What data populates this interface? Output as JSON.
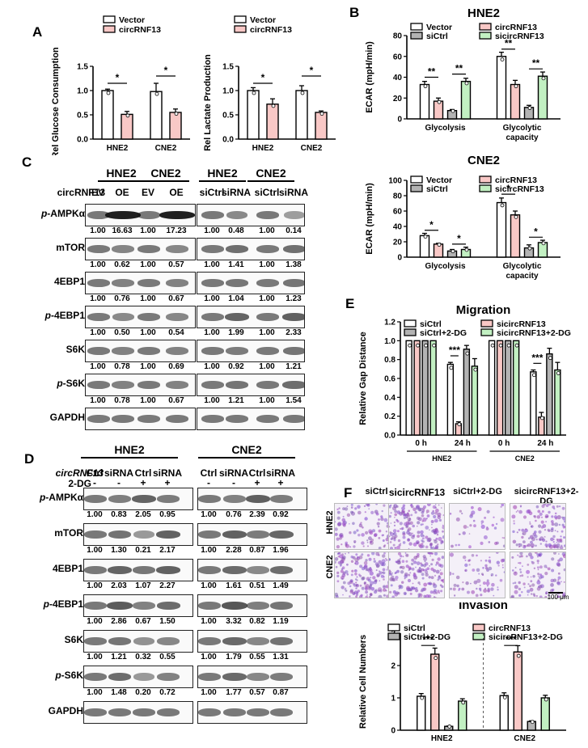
{
  "panels": {
    "A": "A",
    "B": "B",
    "C": "C",
    "D": "D",
    "E": "E",
    "F": "F"
  },
  "colors": {
    "ctrl": "#ffffff",
    "pink": "#f9c8c6",
    "gray": "#b3b3b3",
    "green": "#c2f0c2"
  },
  "chart_data": [
    {
      "id": "A1",
      "type": "bar",
      "ylabel": "Rel Glucose Consumption",
      "categories": [
        "HNE2",
        "CNE2"
      ],
      "ylim": [
        0,
        1.5
      ],
      "yticks": [
        "0.0",
        "0.5",
        "1.0",
        "1.5"
      ],
      "series": [
        {
          "name": "Vector",
          "values": [
            1.0,
            0.98
          ],
          "err": [
            0.03,
            0.17
          ]
        },
        {
          "name": "circRNF13",
          "values": [
            0.51,
            0.55
          ],
          "err": [
            0.06,
            0.07
          ]
        }
      ],
      "sig": [
        "*",
        "*"
      ]
    },
    {
      "id": "A2",
      "type": "bar",
      "ylabel": "Rel Lactate Production",
      "categories": [
        "HNE2",
        "CNE2"
      ],
      "ylim": [
        0,
        1.5
      ],
      "yticks": [
        "0.0",
        "0.5",
        "1.0",
        "1.5"
      ],
      "series": [
        {
          "name": "Vector",
          "values": [
            1.0,
            1.0
          ],
          "err": [
            0.06,
            0.1
          ]
        },
        {
          "name": "circRNF13",
          "values": [
            0.72,
            0.55
          ],
          "err": [
            0.11,
            0.03
          ]
        }
      ],
      "sig": [
        "*",
        "*"
      ]
    },
    {
      "id": "B1",
      "type": "bar",
      "title": "HNE2",
      "ylabel": "ECAR (mpH/min)",
      "categories": [
        "Glycolysis",
        "Glycolytic capacity"
      ],
      "ylim": [
        0,
        80
      ],
      "yticks": [
        "0",
        "20",
        "40",
        "60",
        "80"
      ],
      "series": [
        {
          "name": "Vector",
          "values": [
            33,
            60
          ],
          "err": [
            3,
            4
          ]
        },
        {
          "name": "circRNF13",
          "values": [
            17,
            33
          ],
          "err": [
            3,
            4
          ]
        },
        {
          "name": "siCtrl",
          "values": [
            8,
            11
          ],
          "err": [
            1,
            2
          ]
        },
        {
          "name": "sicircRNF13",
          "values": [
            36,
            41
          ],
          "err": [
            3,
            4
          ]
        }
      ],
      "sig": [
        "**",
        "**",
        "**",
        "**"
      ]
    },
    {
      "id": "B2",
      "type": "bar",
      "title": "CNE2",
      "ylabel": "ECAR (mpH/min)",
      "categories": [
        "Glycolysis",
        "Glycolytic capacity"
      ],
      "ylim": [
        0,
        100
      ],
      "yticks": [
        "0",
        "20",
        "40",
        "60",
        "80",
        "100"
      ],
      "series": [
        {
          "name": "Vector",
          "values": [
            28,
            71
          ],
          "err": [
            3,
            6
          ]
        },
        {
          "name": "circRNF13",
          "values": [
            17,
            55
          ],
          "err": [
            1,
            5
          ]
        },
        {
          "name": "siCtrl",
          "values": [
            8,
            12
          ],
          "err": [
            2,
            4
          ]
        },
        {
          "name": "sicircRNF13",
          "values": [
            10,
            19
          ],
          "err": [
            3,
            3
          ]
        }
      ],
      "sig": [
        "*",
        "*",
        "*",
        "*"
      ]
    },
    {
      "id": "E1",
      "type": "bar",
      "title": "Migration",
      "ylabel": "Relative Gap Distance",
      "categories": [
        "0 h",
        "24 h",
        "0 h",
        "24 h"
      ],
      "groups": [
        "HNE2",
        "CNE2"
      ],
      "ylim": [
        0,
        1.2
      ],
      "yticks": [
        "0.0",
        "0.2",
        "0.4",
        "0.6",
        "0.8",
        "1.0",
        "1.2"
      ],
      "series": [
        {
          "name": "siCtrl",
          "values": [
            1.0,
            0.75,
            1.0,
            0.67
          ],
          "err": [
            0,
            0.02,
            0,
            0.02
          ]
        },
        {
          "name": "sicircRNF13",
          "values": [
            1.0,
            0.12,
            1.0,
            0.19
          ],
          "err": [
            0,
            0.02,
            0,
            0.05
          ]
        },
        {
          "name": "siCtrl+2-DG",
          "values": [
            1.0,
            0.91,
            1.0,
            0.86
          ],
          "err": [
            0,
            0.04,
            0,
            0.06
          ]
        },
        {
          "name": "sicircRNF13+2-DG",
          "values": [
            1.0,
            0.73,
            1.0,
            0.69
          ],
          "err": [
            0,
            0.08,
            0,
            0.08
          ]
        }
      ],
      "sig": [
        "***",
        "***"
      ]
    },
    {
      "id": "F1",
      "type": "bar",
      "title": "Invasion",
      "ylabel": "Relative Cell Numbers",
      "categories": [
        "HNE2",
        "CNE2"
      ],
      "ylim": [
        0,
        3
      ],
      "yticks": [
        "0",
        "1",
        "2",
        "3"
      ],
      "series": [
        {
          "name": "siCtrl",
          "values": [
            1.05,
            1.07
          ]
        },
        {
          "name": "circRNF13",
          "values": [
            2.35,
            2.42
          ]
        },
        {
          "name": "siCtrl+2-DG",
          "values": [
            0.12,
            0.27
          ]
        },
        {
          "name": "sicircRNF13+2-DG",
          "values": [
            0.9,
            1.0
          ]
        }
      ],
      "sig": [
        "***",
        "***"
      ]
    }
  ],
  "blotC": {
    "groups": [
      "HNE2",
      "CNE2",
      "HNE2",
      "CNE2"
    ],
    "condition_label": "circRNF13",
    "lanes": [
      "EV",
      "OE",
      "EV",
      "OE",
      "siCtrl",
      "siRNA",
      "siCtrl",
      "siRNA"
    ],
    "rows": [
      {
        "label": "p-AMPKα",
        "vals": [
          "1.00",
          "16.63",
          "1.00",
          "17.23",
          "1.00",
          "0.48",
          "1.00",
          "0.14"
        ]
      },
      {
        "label": "mTOR",
        "vals": [
          "1.00",
          "0.62",
          "1.00",
          "0.57",
          "1.00",
          "1.41",
          "1.00",
          "1.38"
        ]
      },
      {
        "label": "4EBP1",
        "vals": [
          "1.00",
          "0.76",
          "1.00",
          "0.67",
          "1.00",
          "1.04",
          "1.00",
          "1.23"
        ]
      },
      {
        "label": "p-4EBP1",
        "vals": [
          "1.00",
          "0.50",
          "1.00",
          "0.54",
          "1.00",
          "1.99",
          "1.00",
          "2.33"
        ]
      },
      {
        "label": "S6K",
        "vals": [
          "1.00",
          "0.78",
          "1.00",
          "0.69",
          "1.00",
          "0.92",
          "1.00",
          "1.21"
        ]
      },
      {
        "label": "p-S6K",
        "vals": [
          "1.00",
          "0.78",
          "1.00",
          "0.67",
          "1.00",
          "1.21",
          "1.00",
          "1.54"
        ]
      },
      {
        "label": "GAPDH",
        "vals": []
      }
    ]
  },
  "blotD": {
    "groups": [
      "HNE2",
      "CNE2"
    ],
    "condition_label": "circRNF13",
    "treatment_label": "2-DG",
    "lanes": [
      "Ctrl",
      "siRNA",
      "Ctrl",
      "siRNA",
      "Ctrl",
      "siRNA",
      "Ctrl",
      "siRNA"
    ],
    "treat": [
      "-",
      "-",
      "+",
      "+",
      "-",
      "-",
      "+",
      "+"
    ],
    "rows": [
      {
        "label": "p-AMPKα",
        "vals": [
          "1.00",
          "0.83",
          "2.05",
          "0.95",
          "1.00",
          "0.76",
          "2.39",
          "0.92"
        ]
      },
      {
        "label": "mTOR",
        "vals": [
          "1.00",
          "1.30",
          "0.21",
          "2.17",
          "1.00",
          "2.28",
          "0.87",
          "1.96"
        ]
      },
      {
        "label": "4EBP1",
        "vals": [
          "1.00",
          "2.03",
          "1.07",
          "2.27",
          "1.00",
          "1.61",
          "0.51",
          "1.49"
        ]
      },
      {
        "label": "p-4EBP1",
        "vals": [
          "1.00",
          "2.86",
          "0.67",
          "1.50",
          "1.00",
          "3.32",
          "0.82",
          "1.19"
        ]
      },
      {
        "label": "S6K",
        "vals": [
          "1.00",
          "1.21",
          "0.32",
          "0.55",
          "1.00",
          "1.79",
          "0.55",
          "1.31"
        ]
      },
      {
        "label": "p-S6K",
        "vals": [
          "1.00",
          "1.48",
          "0.20",
          "0.72",
          "1.00",
          "1.77",
          "0.57",
          "0.87"
        ]
      },
      {
        "label": "GAPDH",
        "vals": []
      }
    ]
  },
  "micro": {
    "cols": [
      "siCtrl",
      "sicircRNF13",
      "siCtrl+2-DG",
      "sicircRNF13+2-DG"
    ],
    "rows": [
      "HNE2",
      "CNE2"
    ],
    "scalebar": "100 μm"
  }
}
